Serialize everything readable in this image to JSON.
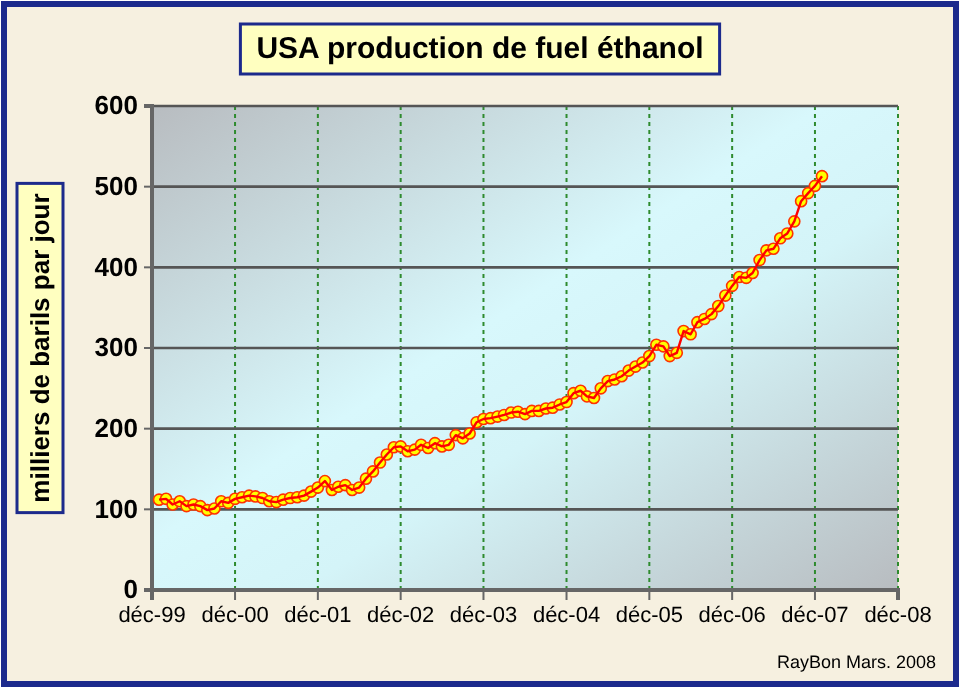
{
  "chart_data": {
    "type": "line",
    "title": "USA  production de fuel éthanol",
    "ylabel": "milliers de barils par jour",
    "annotations": [
      "RayBon Mars. 2008"
    ],
    "x": [
      "2000-01",
      "2000-02",
      "2000-03",
      "2000-04",
      "2000-05",
      "2000-06",
      "2000-07",
      "2000-08",
      "2000-09",
      "2000-10",
      "2000-11",
      "2000-12",
      "2001-01",
      "2001-02",
      "2001-03",
      "2001-04",
      "2001-05",
      "2001-06",
      "2001-07",
      "2001-08",
      "2001-09",
      "2001-10",
      "2001-11",
      "2001-12",
      "2002-01",
      "2002-02",
      "2002-03",
      "2002-04",
      "2002-05",
      "2002-06",
      "2002-07",
      "2002-08",
      "2002-09",
      "2002-10",
      "2002-11",
      "2002-12",
      "2003-01",
      "2003-02",
      "2003-03",
      "2003-04",
      "2003-05",
      "2003-06",
      "2003-07",
      "2003-08",
      "2003-09",
      "2003-10",
      "2003-11",
      "2003-12",
      "2004-01",
      "2004-02",
      "2004-03",
      "2004-04",
      "2004-05",
      "2004-06",
      "2004-07",
      "2004-08",
      "2004-09",
      "2004-10",
      "2004-11",
      "2004-12",
      "2005-01",
      "2005-02",
      "2005-03",
      "2005-04",
      "2005-05",
      "2005-06",
      "2005-07",
      "2005-08",
      "2005-09",
      "2005-10",
      "2005-11",
      "2005-12",
      "2006-01",
      "2006-02",
      "2006-03",
      "2006-04",
      "2006-05",
      "2006-06",
      "2006-07",
      "2006-08",
      "2006-09",
      "2006-10",
      "2006-11",
      "2006-12",
      "2007-01",
      "2007-02",
      "2007-03",
      "2007-04",
      "2007-05",
      "2007-06",
      "2007-07",
      "2007-08",
      "2007-09",
      "2007-10",
      "2007-11",
      "2007-12",
      "2008-01"
    ],
    "series": [
      {
        "color": "#ffff00",
        "values": [
          112,
          113,
          106,
          110,
          104,
          106,
          104,
          99,
          101,
          110,
          108,
          113,
          115,
          117,
          116,
          114,
          110,
          109,
          112,
          114,
          115,
          117,
          122,
          127,
          135,
          124,
          128,
          130,
          124,
          127,
          138,
          147,
          158,
          168,
          177,
          178,
          172,
          174,
          180,
          176,
          182,
          178,
          180,
          192,
          188,
          194,
          208,
          212,
          213,
          215,
          217,
          220,
          221,
          218,
          222,
          222,
          225,
          226,
          230,
          233,
          244,
          247,
          240,
          238,
          250,
          259,
          261,
          265,
          272,
          277,
          282,
          290,
          304,
          302,
          290,
          294,
          321,
          317,
          332,
          336,
          342,
          352,
          365,
          377,
          388,
          387,
          393,
          409,
          421,
          423,
          436,
          442,
          457,
          482,
          492,
          501,
          513
        ]
      }
    ],
    "xlim": [
      "1999-12",
      "2008-12"
    ],
    "xticks": [
      {
        "value": "1999-12",
        "label": "déc-99"
      },
      {
        "value": "2000-12",
        "label": "déc-00"
      },
      {
        "value": "2001-12",
        "label": "déc-01"
      },
      {
        "value": "2002-12",
        "label": "déc-02"
      },
      {
        "value": "2003-12",
        "label": "déc-03"
      },
      {
        "value": "2004-12",
        "label": "déc-04"
      },
      {
        "value": "2005-12",
        "label": "déc-05"
      },
      {
        "value": "2006-12",
        "label": "déc-06"
      },
      {
        "value": "2007-12",
        "label": "déc-07"
      },
      {
        "value": "2008-12",
        "label": "déc-08"
      }
    ],
    "ylim": [
      0,
      600
    ],
    "yticks": [
      0,
      100,
      200,
      300,
      400,
      500,
      600
    ],
    "grid": true,
    "marker": "circle",
    "line_style": "solid"
  }
}
